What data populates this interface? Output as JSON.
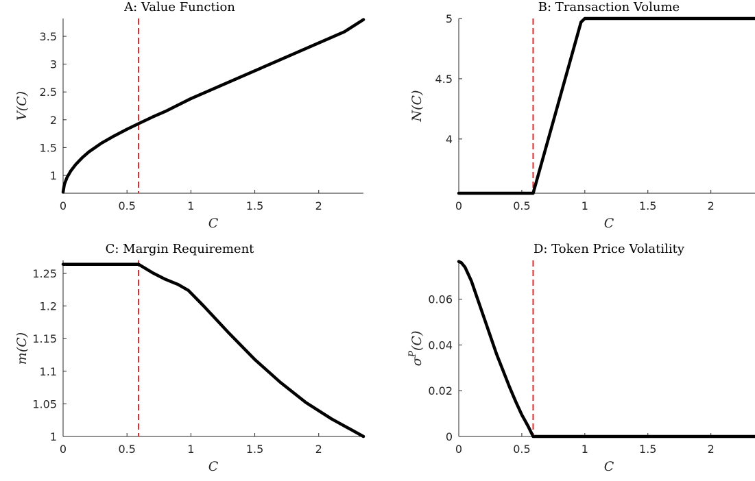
{
  "chart_data": [
    {
      "id": "A",
      "type": "line",
      "title": "A: Value Function",
      "xlabel": "C",
      "ylabel": "V(C)",
      "xlim": [
        0,
        2.35
      ],
      "ylim": [
        0.68,
        3.82
      ],
      "xticks": [
        0,
        0.5,
        1,
        1.5,
        2
      ],
      "xtick_labels": [
        "0",
        "0.5",
        "1",
        "1.5",
        "2"
      ],
      "yticks": [
        1,
        1.5,
        2,
        2.5,
        3,
        3.5
      ],
      "ytick_labels": [
        "1",
        "1.5",
        "2",
        "2.5",
        "3",
        "3.5"
      ],
      "vline": 0.59,
      "series": [
        {
          "x": [
            0,
            0.01,
            0.03,
            0.06,
            0.1,
            0.15,
            0.2,
            0.3,
            0.4,
            0.5,
            0.59,
            0.7,
            0.8,
            1.0,
            1.2,
            1.4,
            1.6,
            1.8,
            2.0,
            2.2,
            2.35
          ],
          "values": [
            0.7,
            0.84,
            0.96,
            1.08,
            1.2,
            1.32,
            1.42,
            1.58,
            1.71,
            1.83,
            1.93,
            2.05,
            2.15,
            2.38,
            2.58,
            2.78,
            2.98,
            3.18,
            3.38,
            3.58,
            3.8
          ]
        }
      ]
    },
    {
      "id": "B",
      "type": "line",
      "title": "B: Transaction Volume",
      "xlabel": "C",
      "ylabel": "N(C)",
      "xlim": [
        0,
        2.35
      ],
      "ylim": [
        3.55,
        5.0
      ],
      "xticks": [
        0,
        0.5,
        1,
        1.5,
        2
      ],
      "xtick_labels": [
        "0",
        "0.5",
        "1",
        "1.5",
        "2"
      ],
      "yticks": [
        4,
        4.5,
        5
      ],
      "ytick_labels": [
        "4",
        "4.5",
        "5"
      ],
      "vline": 0.59,
      "series": [
        {
          "x": [
            0,
            0.59,
            0.97,
            1.0,
            2.35
          ],
          "values": [
            3.55,
            3.55,
            4.97,
            5.0,
            5.0
          ]
        }
      ]
    },
    {
      "id": "C",
      "type": "line",
      "title": "C: Margin Requirement",
      "xlabel": "C",
      "ylabel": "m(C)",
      "xlim": [
        0,
        2.35
      ],
      "ylim": [
        1.0,
        1.27
      ],
      "xticks": [
        0,
        0.5,
        1,
        1.5,
        2
      ],
      "xtick_labels": [
        "0",
        "0.5",
        "1",
        "1.5",
        "2"
      ],
      "yticks": [
        1,
        1.05,
        1.1,
        1.15,
        1.2,
        1.25
      ],
      "ytick_labels": [
        "1",
        "1.05",
        "1.1",
        "1.15",
        "1.2",
        "1.25"
      ],
      "vline": 0.59,
      "series": [
        {
          "x": [
            0,
            0.59,
            0.7,
            0.8,
            0.9,
            0.98,
            1.1,
            1.3,
            1.5,
            1.7,
            1.9,
            2.1,
            2.35
          ],
          "values": [
            1.264,
            1.264,
            1.251,
            1.241,
            1.233,
            1.224,
            1.2,
            1.158,
            1.118,
            1.083,
            1.052,
            1.027,
            1.0
          ]
        }
      ]
    },
    {
      "id": "D",
      "type": "line",
      "title": "D: Token Price Volatility",
      "xlabel": "C",
      "ylabel": "σ^P(C)",
      "xlim": [
        0,
        2.35
      ],
      "ylim": [
        0,
        0.077
      ],
      "xticks": [
        0,
        0.5,
        1,
        1.5,
        2
      ],
      "xtick_labels": [
        "0",
        "0.5",
        "1",
        "1.5",
        "2"
      ],
      "yticks": [
        0,
        0.02,
        0.04,
        0.06
      ],
      "ytick_labels": [
        "0",
        "0.02",
        "0.04",
        "0.06"
      ],
      "vline": 0.59,
      "series": [
        {
          "x": [
            0,
            0.02,
            0.05,
            0.1,
            0.15,
            0.2,
            0.25,
            0.3,
            0.35,
            0.4,
            0.45,
            0.5,
            0.55,
            0.59,
            0.7,
            1.0,
            1.5,
            2.0,
            2.35
          ],
          "values": [
            0.0765,
            0.076,
            0.074,
            0.068,
            0.06,
            0.052,
            0.044,
            0.036,
            0.029,
            0.022,
            0.0155,
            0.0095,
            0.0045,
            0.0,
            0.0,
            0.0,
            0.0,
            0.0,
            0.0
          ]
        }
      ]
    }
  ]
}
